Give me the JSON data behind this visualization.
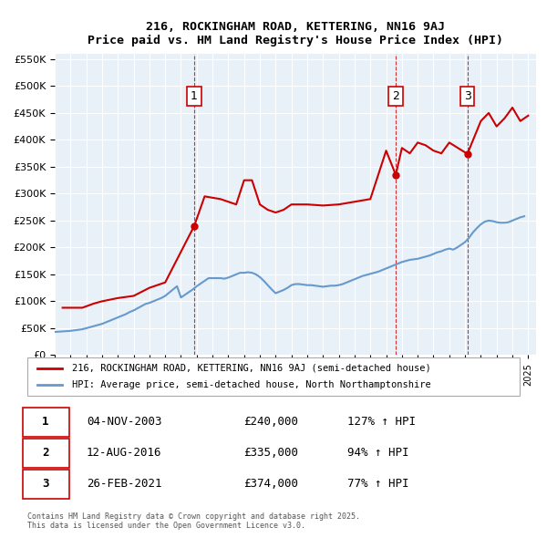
{
  "title": "216, ROCKINGHAM ROAD, KETTERING, NN16 9AJ",
  "subtitle": "Price paid vs. HM Land Registry's House Price Index (HPI)",
  "bg_color": "#e8f0f8",
  "plot_bg_color": "#e8f0f8",
  "legend_line1": "216, ROCKINGHAM ROAD, KETTERING, NN16 9AJ (semi-detached house)",
  "legend_line2": "HPI: Average price, semi-detached house, North Northamptonshire",
  "footer": "Contains HM Land Registry data © Crown copyright and database right 2025.\nThis data is licensed under the Open Government Licence v3.0.",
  "sale_color": "#cc0000",
  "hpi_color": "#6699cc",
  "vline_color": "#cc0000",
  "ylim": [
    0,
    560000
  ],
  "yticks": [
    0,
    50000,
    100000,
    150000,
    200000,
    250000,
    300000,
    350000,
    400000,
    450000,
    500000,
    550000
  ],
  "xlim_start": 1995.0,
  "xlim_end": 2025.5,
  "sales": [
    {
      "date": 2003.84,
      "price": 240000,
      "label": "1"
    },
    {
      "date": 2016.61,
      "price": 335000,
      "label": "2"
    },
    {
      "date": 2021.15,
      "price": 374000,
      "label": "3"
    }
  ],
  "vlines": [
    2003.84,
    2016.61,
    2021.15
  ],
  "table_rows": [
    {
      "num": "1",
      "date": "04-NOV-2003",
      "price": "£240,000",
      "pct": "127% ↑ HPI"
    },
    {
      "num": "2",
      "date": "12-AUG-2016",
      "price": "£335,000",
      "pct": "94% ↑ HPI"
    },
    {
      "num": "3",
      "date": "26-FEB-2021",
      "price": "£374,000",
      "pct": "77% ↑ HPI"
    }
  ],
  "hpi_data": {
    "years": [
      1995.0,
      1995.25,
      1995.5,
      1995.75,
      1996.0,
      1996.25,
      1996.5,
      1996.75,
      1997.0,
      1997.25,
      1997.5,
      1997.75,
      1998.0,
      1998.25,
      1998.5,
      1998.75,
      1999.0,
      1999.25,
      1999.5,
      1999.75,
      2000.0,
      2000.25,
      2000.5,
      2000.75,
      2001.0,
      2001.25,
      2001.5,
      2001.75,
      2002.0,
      2002.25,
      2002.5,
      2002.75,
      2003.0,
      2003.25,
      2003.5,
      2003.75,
      2004.0,
      2004.25,
      2004.5,
      2004.75,
      2005.0,
      2005.25,
      2005.5,
      2005.75,
      2006.0,
      2006.25,
      2006.5,
      2006.75,
      2007.0,
      2007.25,
      2007.5,
      2007.75,
      2008.0,
      2008.25,
      2008.5,
      2008.75,
      2009.0,
      2009.25,
      2009.5,
      2009.75,
      2010.0,
      2010.25,
      2010.5,
      2010.75,
      2011.0,
      2011.25,
      2011.5,
      2011.75,
      2012.0,
      2012.25,
      2012.5,
      2012.75,
      2013.0,
      2013.25,
      2013.5,
      2013.75,
      2014.0,
      2014.25,
      2014.5,
      2014.75,
      2015.0,
      2015.25,
      2015.5,
      2015.75,
      2016.0,
      2016.25,
      2016.5,
      2016.75,
      2017.0,
      2017.25,
      2017.5,
      2017.75,
      2018.0,
      2018.25,
      2018.5,
      2018.75,
      2019.0,
      2019.25,
      2019.5,
      2019.75,
      2020.0,
      2020.25,
      2020.5,
      2020.75,
      2021.0,
      2021.25,
      2021.5,
      2021.75,
      2022.0,
      2022.25,
      2022.5,
      2022.75,
      2023.0,
      2023.25,
      2023.5,
      2023.75,
      2024.0,
      2024.25,
      2024.5,
      2024.75
    ],
    "values": [
      43000,
      43500,
      44000,
      44500,
      45000,
      46000,
      47000,
      48000,
      50000,
      52000,
      54000,
      56000,
      58000,
      61000,
      64000,
      67000,
      70000,
      73000,
      76000,
      80000,
      83000,
      87000,
      91000,
      95000,
      97000,
      100000,
      103000,
      106000,
      110000,
      116000,
      122000,
      128000,
      107000,
      112000,
      117000,
      122000,
      128000,
      133000,
      138000,
      143000,
      143000,
      143000,
      143000,
      142000,
      144000,
      147000,
      150000,
      153000,
      153000,
      154000,
      153000,
      150000,
      145000,
      138000,
      130000,
      122000,
      115000,
      118000,
      121000,
      125000,
      130000,
      132000,
      132000,
      131000,
      130000,
      130000,
      129000,
      128000,
      127000,
      128000,
      129000,
      129000,
      130000,
      132000,
      135000,
      138000,
      141000,
      144000,
      147000,
      149000,
      151000,
      153000,
      155000,
      158000,
      161000,
      164000,
      167000,
      170000,
      173000,
      175000,
      177000,
      178000,
      179000,
      181000,
      183000,
      185000,
      188000,
      191000,
      193000,
      196000,
      198000,
      196000,
      200000,
      205000,
      210000,
      218000,
      228000,
      236000,
      243000,
      248000,
      250000,
      249000,
      247000,
      246000,
      246000,
      247000,
      250000,
      253000,
      256000,
      258000
    ]
  },
  "price_data": {
    "years": [
      1995.5,
      1996.75,
      1997.5,
      1998.0,
      1998.5,
      1999.0,
      2000.0,
      2001.0,
      2002.0,
      2003.84,
      2004.5,
      2005.5,
      2006.5,
      2007.0,
      2007.5,
      2008.0,
      2008.5,
      2009.0,
      2009.5,
      2010.0,
      2011.0,
      2012.0,
      2013.0,
      2014.0,
      2015.0,
      2016.0,
      2016.61,
      2017.0,
      2017.5,
      2018.0,
      2018.5,
      2019.0,
      2019.5,
      2020.0,
      2021.15,
      2022.0,
      2022.5,
      2023.0,
      2023.5,
      2024.0,
      2024.5,
      2025.0
    ],
    "values": [
      88000,
      88000,
      96000,
      100000,
      103000,
      106000,
      110000,
      125000,
      135000,
      240000,
      295000,
      290000,
      280000,
      325000,
      325000,
      280000,
      270000,
      265000,
      270000,
      280000,
      280000,
      278000,
      280000,
      285000,
      290000,
      380000,
      335000,
      385000,
      375000,
      395000,
      390000,
      380000,
      375000,
      395000,
      374000,
      435000,
      450000,
      425000,
      440000,
      460000,
      435000,
      445000
    ]
  }
}
